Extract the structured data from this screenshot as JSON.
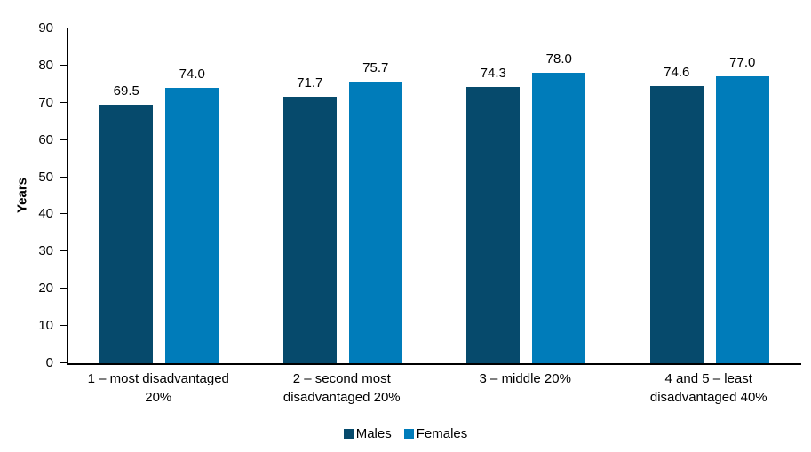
{
  "figure": {
    "y_axis_title": "Years"
  },
  "chart_data": {
    "type": "bar",
    "title": "",
    "xlabel": "",
    "ylabel": "Years",
    "ylim": [
      0,
      90
    ],
    "yticks": [
      0,
      10,
      20,
      30,
      40,
      50,
      60,
      70,
      80,
      90
    ],
    "grid": false,
    "legend_position": "bottom",
    "categories": [
      "1 – most disadvantaged\n20%",
      "2 – second most\ndisadvantaged 20%",
      "3 – middle 20%",
      "4 and 5 – least\ndisadvantaged 40%"
    ],
    "series": [
      {
        "name": "Males",
        "color": "#064A6C",
        "values": [
          69.5,
          71.7,
          74.3,
          74.6
        ]
      },
      {
        "name": "Females",
        "color": "#007CBA",
        "values": [
          74.0,
          75.7,
          78.0,
          77.0
        ]
      }
    ],
    "value_label_decimals": 1
  }
}
